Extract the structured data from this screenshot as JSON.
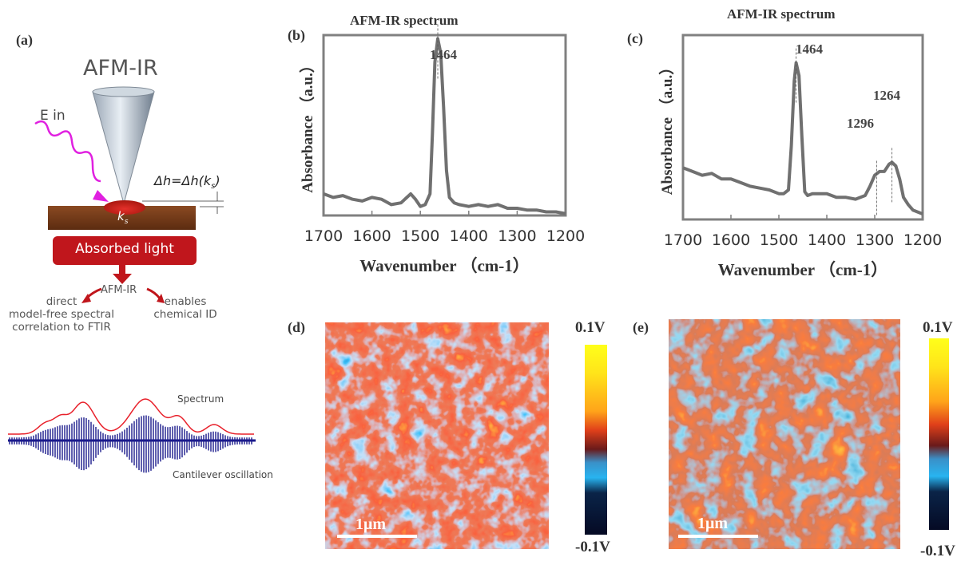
{
  "panels": {
    "a": {
      "letter": "(a)",
      "title": "AFM-IR",
      "e_in": "E in",
      "delta_h_formula": "Δh=Δh(k",
      "delta_h_sub": "s",
      "delta_h_close": ")",
      "k_label": "k",
      "k_sub": "s",
      "absorbed_light": "Absorbed light",
      "afmir_small": "AFM-IR",
      "left_text": [
        "direct",
        "model-free spectral",
        "correlation to FTIR"
      ],
      "right_text": [
        "enables",
        "chemical ID"
      ],
      "spectrum_label": "Spectrum",
      "cantilever_label": "Cantilever oscillation",
      "colors": {
        "spectrum": "#e8202a",
        "oscillation": "#1a1a8c",
        "wave": "#e020e0",
        "absorbed": "#c0161c",
        "sample": "#7a3e1a"
      }
    },
    "b": {
      "letter": "(b)",
      "title": "AFM-IR spectrum"
    },
    "c": {
      "letter": "(c)",
      "title": "AFM-IR spectrum"
    },
    "d": {
      "letter": "(d)",
      "cbar_top": "0.1V",
      "cbar_bottom": "-0.1V",
      "scalebar": "1μm"
    },
    "e": {
      "letter": "(e)",
      "cbar_top": "0.1V",
      "cbar_bottom": "-0.1V",
      "scalebar": "1μm"
    }
  },
  "chart_data": [
    {
      "type": "line",
      "title": "AFM-IR spectrum",
      "xlabel": "Wavenumber （cm-1）",
      "ylabel": "Absorbance （a.u.）",
      "xlim": [
        1700,
        1200
      ],
      "x_ticks": [
        "1700",
        "1600",
        "1500",
        "1400",
        "1300",
        "1200"
      ],
      "annotations": [
        "1464"
      ],
      "peaks": [
        1464
      ],
      "ylim": [
        0,
        1
      ],
      "series": [
        {
          "color": "#707070",
          "x": [
            1700,
            1680,
            1660,
            1640,
            1620,
            1600,
            1580,
            1560,
            1540,
            1520,
            1510,
            1500,
            1490,
            1480,
            1475,
            1470,
            1464,
            1458,
            1452,
            1446,
            1440,
            1430,
            1420,
            1400,
            1380,
            1360,
            1340,
            1320,
            1300,
            1280,
            1260,
            1240,
            1220,
            1200
          ],
          "y": [
            0.12,
            0.1,
            0.11,
            0.09,
            0.08,
            0.1,
            0.09,
            0.06,
            0.07,
            0.12,
            0.09,
            0.05,
            0.06,
            0.12,
            0.45,
            0.85,
            0.98,
            0.9,
            0.6,
            0.25,
            0.1,
            0.07,
            0.06,
            0.05,
            0.06,
            0.05,
            0.06,
            0.04,
            0.04,
            0.03,
            0.03,
            0.02,
            0.02,
            0.01
          ]
        }
      ]
    },
    {
      "type": "line",
      "title": "AFM-IR spectrum",
      "xlabel": "Wavenumber （cm-1）",
      "ylabel": "Absorbance （a.u.）",
      "xlim": [
        1700,
        1200
      ],
      "x_ticks": [
        "1700",
        "1600",
        "1500",
        "1400",
        "1300",
        "1200"
      ],
      "annotations": [
        "1464",
        "1296",
        "1264"
      ],
      "peaks": [
        1464,
        1296,
        1264
      ],
      "ylim": [
        0,
        1
      ],
      "series": [
        {
          "color": "#707070",
          "x": [
            1700,
            1680,
            1660,
            1640,
            1620,
            1600,
            1580,
            1560,
            1540,
            1520,
            1500,
            1490,
            1480,
            1474,
            1468,
            1464,
            1458,
            1452,
            1446,
            1440,
            1430,
            1420,
            1400,
            1380,
            1360,
            1340,
            1320,
            1310,
            1300,
            1290,
            1280,
            1270,
            1264,
            1256,
            1248,
            1240,
            1230,
            1220,
            1200
          ],
          "y": [
            0.28,
            0.26,
            0.24,
            0.25,
            0.22,
            0.22,
            0.2,
            0.18,
            0.17,
            0.16,
            0.14,
            0.14,
            0.16,
            0.4,
            0.75,
            0.85,
            0.78,
            0.45,
            0.15,
            0.13,
            0.14,
            0.14,
            0.14,
            0.12,
            0.12,
            0.11,
            0.13,
            0.18,
            0.24,
            0.26,
            0.26,
            0.3,
            0.31,
            0.29,
            0.22,
            0.12,
            0.08,
            0.05,
            0.03
          ]
        }
      ]
    }
  ]
}
